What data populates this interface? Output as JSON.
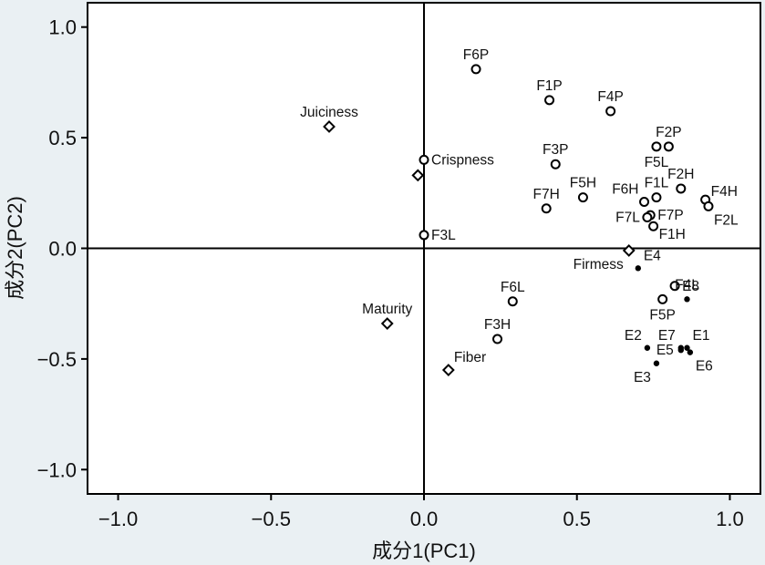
{
  "chart_data": {
    "type": "scatter",
    "xlabel": "成分1(PC1)",
    "ylabel": "成分2(PC2)",
    "xlim": [
      -1.1,
      1.1
    ],
    "ylim": [
      -1.11,
      1.11
    ],
    "xticks": [
      -1.0,
      -0.5,
      0.0,
      0.5,
      1.0
    ],
    "yticks": [
      -1.0,
      -0.5,
      0.0,
      0.5,
      1.0
    ],
    "xtick_labels": [
      "−1.0",
      "−0.5",
      "0.0",
      "0.5",
      "1.0"
    ],
    "ytick_labels": [
      "−1.0",
      "−0.5",
      "0.0",
      "0.5",
      "1.0"
    ],
    "zero_lines": true,
    "grid": false,
    "series": [
      {
        "marker": "open-circle",
        "points": [
          {
            "label": "F6P",
            "x": 0.17,
            "y": 0.81,
            "pos": "above"
          },
          {
            "label": "F1P",
            "x": 0.41,
            "y": 0.67,
            "pos": "above"
          },
          {
            "label": "F4P",
            "x": 0.61,
            "y": 0.62,
            "pos": "above"
          },
          {
            "label": "F2P",
            "x": 0.8,
            "y": 0.46,
            "pos": "above"
          },
          {
            "label": "F3P",
            "x": 0.43,
            "y": 0.38,
            "pos": "above"
          },
          {
            "label": "F5L",
            "x": 0.76,
            "y": 0.46,
            "pos": "below"
          },
          {
            "label": "Crispness",
            "x": 0.0,
            "y": 0.4,
            "pos": "right"
          },
          {
            "label": "F2H",
            "x": 0.84,
            "y": 0.27,
            "pos": "above"
          },
          {
            "label": "F5H",
            "x": 0.52,
            "y": 0.23,
            "pos": "above"
          },
          {
            "label": "F6H",
            "x": 0.72,
            "y": 0.21,
            "pos": "above-left"
          },
          {
            "label": "F1L",
            "x": 0.76,
            "y": 0.23,
            "pos": "above"
          },
          {
            "label": "F4H",
            "x": 0.92,
            "y": 0.22,
            "pos": "right-up"
          },
          {
            "label": "F7H",
            "x": 0.4,
            "y": 0.18,
            "pos": "above"
          },
          {
            "label": "F7P",
            "x": 0.74,
            "y": 0.15,
            "pos": "right"
          },
          {
            "label": "F2L",
            "x": 0.93,
            "y": 0.19,
            "pos": "below-right"
          },
          {
            "label": "F7L",
            "x": 0.73,
            "y": 0.14,
            "pos": "left"
          },
          {
            "label": "F1H",
            "x": 0.75,
            "y": 0.1,
            "pos": "right-down"
          },
          {
            "label": "F3L",
            "x": 0.0,
            "y": 0.06,
            "pos": "right"
          },
          {
            "label": "E8",
            "x": 0.82,
            "y": -0.17,
            "pos": "right"
          },
          {
            "label": "F5P",
            "x": 0.78,
            "y": -0.23,
            "pos": "below"
          },
          {
            "label": "F6L",
            "x": 0.29,
            "y": -0.24,
            "pos": "above"
          },
          {
            "label": "F3H",
            "x": 0.24,
            "y": -0.41,
            "pos": "above"
          }
        ]
      },
      {
        "marker": "filled-dot",
        "points": [
          {
            "label": "E4",
            "x": 0.7,
            "y": -0.09,
            "pos": "above-right"
          },
          {
            "label": "F4L",
            "x": 0.86,
            "y": -0.23,
            "pos": "above"
          },
          {
            "label": "E2",
            "x": 0.73,
            "y": -0.45,
            "pos": "above-left"
          },
          {
            "label": "E7",
            "x": 0.84,
            "y": -0.45,
            "pos": "above-left"
          },
          {
            "label": "E1",
            "x": 0.86,
            "y": -0.45,
            "pos": "above-right"
          },
          {
            "label": "E5",
            "x": 0.84,
            "y": -0.46,
            "pos": "left"
          },
          {
            "label": "E6",
            "x": 0.87,
            "y": -0.47,
            "pos": "below-right"
          },
          {
            "label": "E3",
            "x": 0.76,
            "y": -0.52,
            "pos": "below-left"
          }
        ]
      },
      {
        "marker": "open-diamond",
        "points": [
          {
            "label": "Juiciness",
            "x": -0.31,
            "y": 0.55,
            "pos": "above"
          },
          {
            "label": "",
            "x": -0.02,
            "y": 0.33,
            "pos": "none"
          },
          {
            "label": "Firmess",
            "x": 0.67,
            "y": -0.01,
            "pos": "below-left"
          },
          {
            "label": "Maturity",
            "x": -0.12,
            "y": -0.34,
            "pos": "above"
          },
          {
            "label": "Fiber",
            "x": 0.08,
            "y": -0.55,
            "pos": "above-right"
          }
        ]
      }
    ]
  }
}
